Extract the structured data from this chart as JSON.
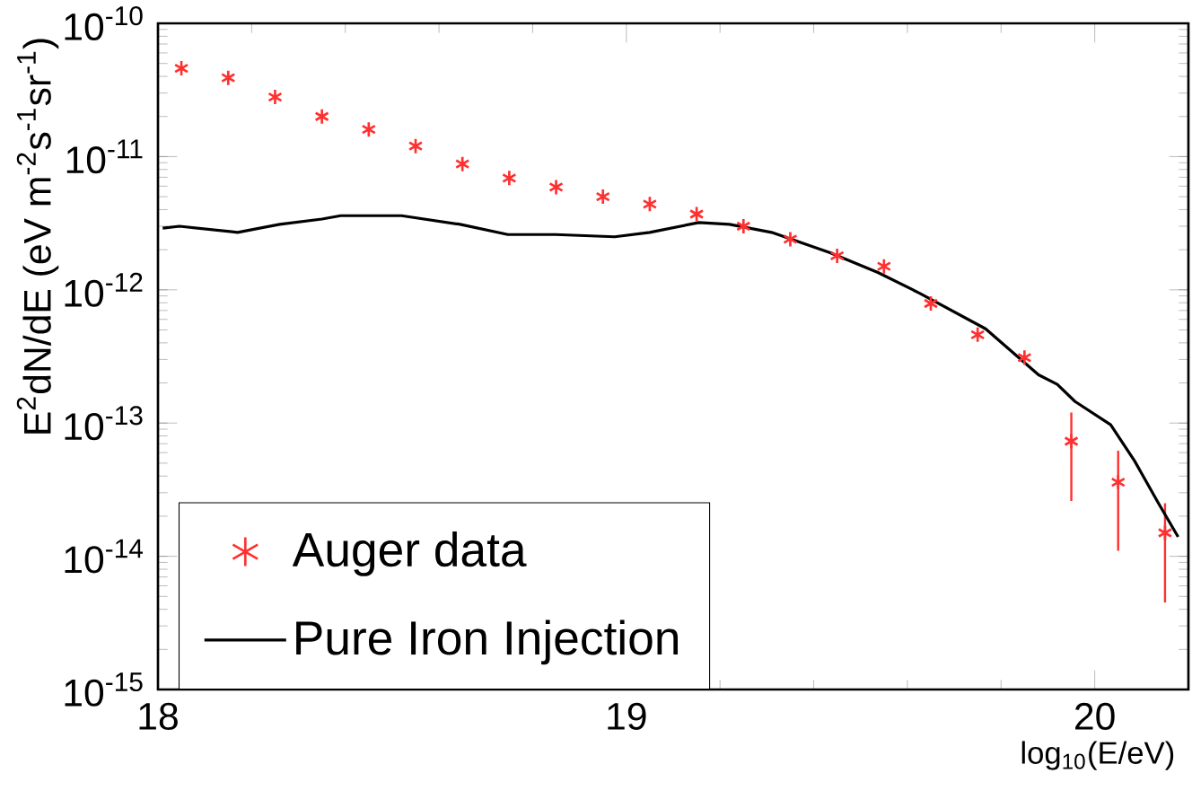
{
  "chart_data": {
    "type": "line",
    "xlabel": "log$_{10}$(E/eV)",
    "ylabel": "E$^{2}$dN/dE (eV m$^{-2}$s$^{-1}$sr$^{-1}$)",
    "xlim": [
      18,
      20.2
    ],
    "xticks": [
      18,
      19,
      20
    ],
    "ylim": [
      1e-15,
      1e-10
    ],
    "yticks": [
      {
        "value": 1e-15,
        "label": "10$^{-15}$"
      },
      {
        "value": 1e-14,
        "label": "10$^{-14}$"
      },
      {
        "value": 1e-13,
        "label": "10$^{-13}$"
      },
      {
        "value": 1e-12,
        "label": "10$^{-12}$"
      },
      {
        "value": 1e-11,
        "label": "10$^{-11}$"
      },
      {
        "value": 1e-10,
        "label": "10$^{-10}$"
      }
    ],
    "log": "y",
    "legend": "bottom left",
    "series": [
      {
        "name": "Auger data",
        "type": "scatter",
        "marker": "cross",
        "color": "#ff3030",
        "x": [
          18.05,
          18.15,
          18.25,
          18.35,
          18.45,
          18.55,
          18.65,
          18.75,
          18.85,
          18.95,
          19.05,
          19.15,
          19.25,
          19.35,
          19.45,
          19.55,
          19.65,
          19.75,
          19.85,
          19.95,
          20.05,
          20.15
        ],
        "values": [
          4.6e-11,
          3.9e-11,
          2.8e-11,
          2e-11,
          1.6e-11,
          1.2e-11,
          8.8e-12,
          6.9e-12,
          5.9e-12,
          5e-12,
          4.4e-12,
          3.7e-12,
          3e-12,
          2.4e-12,
          1.8e-12,
          1.5e-12,
          7.9e-13,
          4.6e-13,
          3.1e-13,
          7.3e-14,
          3.6e-14,
          1.5e-14
        ],
        "errors": [
          null,
          null,
          null,
          null,
          null,
          null,
          null,
          null,
          null,
          null,
          null,
          null,
          null,
          null,
          null,
          null,
          null,
          null,
          null,
          [
            2.6e-14,
            1.2e-13
          ],
          [
            1.1e-14,
            6.2e-14
          ],
          [
            4.5e-15,
            2.5e-14
          ]
        ]
      },
      {
        "name": "Pure Iron Injection",
        "marker": "none",
        "line_style": "solid",
        "color": "#000000",
        "x": [
          18.01,
          18.046,
          18.17,
          18.26,
          18.35,
          18.39,
          18.52,
          18.645,
          18.747,
          18.849,
          18.975,
          19.05,
          19.155,
          19.22,
          19.31,
          19.435,
          19.537,
          19.627,
          19.767,
          19.88,
          19.92,
          19.958,
          20.034,
          20.085,
          20.136,
          20.178
        ],
        "values": [
          2.9e-12,
          3e-12,
          2.7e-12,
          3.1e-12,
          3.4e-12,
          3.6e-12,
          3.6e-12,
          3.1e-12,
          2.6e-12,
          2.6e-12,
          2.5e-12,
          2.7e-12,
          3.2e-12,
          3.1e-12,
          2.7e-12,
          1.9e-12,
          1.35e-12,
          9.4e-13,
          5.1e-13,
          2.3e-13,
          1.95e-13,
          1.45e-13,
          9.7e-14,
          5.2e-14,
          2.5e-14,
          1.4e-14
        ]
      }
    ]
  }
}
